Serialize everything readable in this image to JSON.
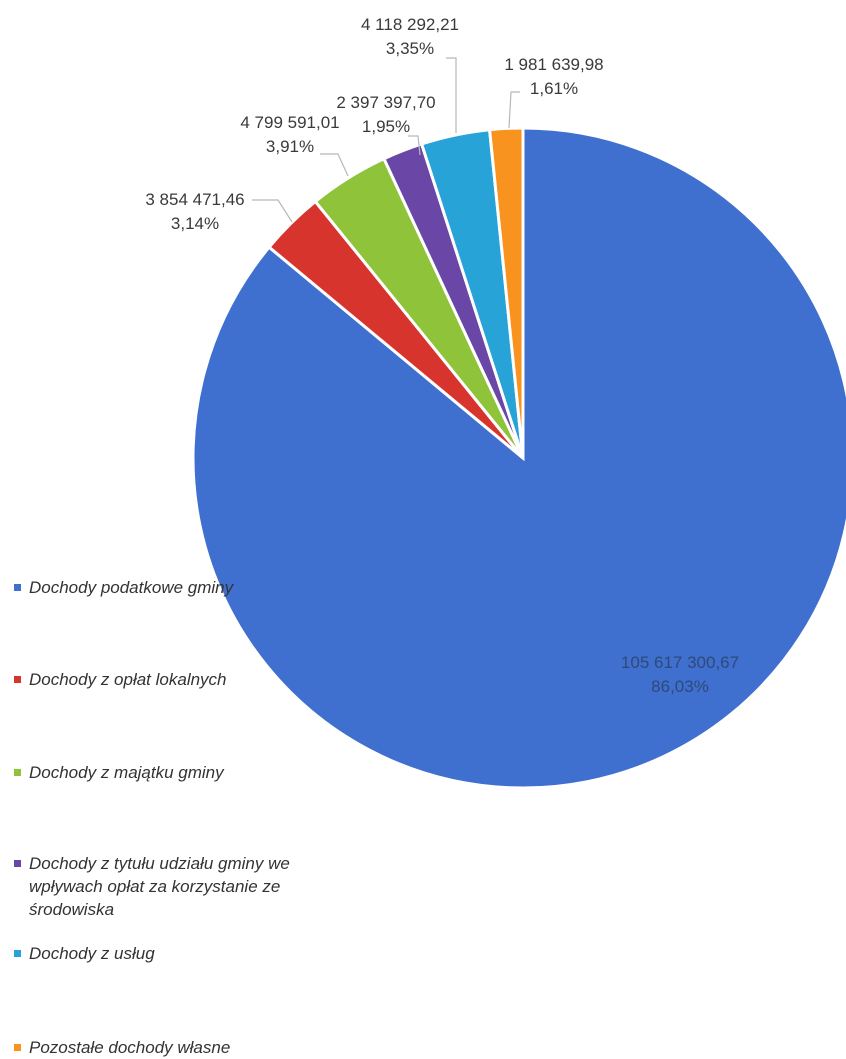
{
  "chart_data": {
    "type": "pie",
    "title": "",
    "slices": [
      {
        "name": "Dochody podatkowe gminy",
        "value": 105617300.67,
        "value_label": "105 617 300,67",
        "percent_label": "86,03%",
        "color": "#3f6fcf"
      },
      {
        "name": "Dochody z opłat lokalnych",
        "value": 3854471.46,
        "value_label": "3 854 471,46",
        "percent_label": "3,14%",
        "color": "#d8342e"
      },
      {
        "name": "Dochody z majątku gminy",
        "value": 4799591.01,
        "value_label": "4 799 591,01",
        "percent_label": "3,91%",
        "color": "#8fc33a"
      },
      {
        "name": " Dochody z tytułu udziału gminy we wpływach opłat za korzystanie ze środowiska",
        "value": 2397397.7,
        "value_label": "2 397 397,70",
        "percent_label": "1,95%",
        "color": "#6a46a6"
      },
      {
        "name": "Dochody z usług",
        "value": 4118292.21,
        "value_label": "4 118 292,21",
        "percent_label": "3,35%",
        "color": "#27a3d8"
      },
      {
        "name": "Pozostałe dochody własne",
        "value": 1981639.98,
        "value_label": "1 981 639,98",
        "percent_label": "1,61%",
        "color": "#f7931e"
      }
    ],
    "start_angle_deg": 0,
    "direction": "clockwise",
    "legend_position": "left"
  }
}
